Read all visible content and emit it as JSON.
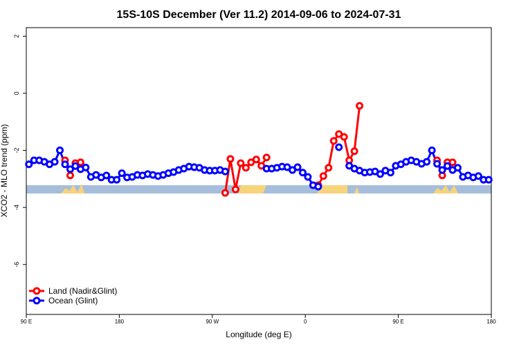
{
  "chart_data": {
    "type": "line",
    "title": "15S-10S December (Ver 11.2)   2014-09-06 to 2024-07-31",
    "xlabel": "Longitude (deg E)",
    "ylabel": "XCO2 - MLO trend (ppm)",
    "x": [
      92.5,
      97.5,
      102.5,
      107.5,
      112.5,
      117.5,
      122.5,
      127.5,
      132.5,
      137.5,
      142.5,
      147.5,
      152.5,
      157.5,
      162.5,
      167.5,
      172.5,
      177.5,
      182.5,
      187.5,
      192.5,
      197.5,
      202.5,
      207.5,
      212.5,
      217.5,
      222.5,
      227.5,
      232.5,
      237.5,
      242.5,
      247.5,
      252.5,
      257.5,
      262.5,
      267.5,
      272.5,
      277.5,
      282.5,
      287.5,
      292.5,
      297.5,
      302.5,
      307.5,
      312.5,
      317.5,
      322.5,
      327.5,
      332.5,
      337.5,
      342.5,
      347.5,
      352.5,
      357.5,
      362.5,
      367.5,
      372.5,
      377.5,
      382.5,
      387.5,
      392.5,
      397.5,
      402.5,
      407.5,
      412.5,
      417.5,
      422.5,
      427.5,
      432.5,
      437.5,
      442.5,
      447.5,
      452.5,
      457.5,
      462.5,
      467.5,
      472.5,
      477.5,
      482.5,
      487.5,
      492.5,
      497.5,
      502.5,
      507.5,
      512.5,
      517.5,
      522.5,
      527.5,
      532.5,
      537.5
    ],
    "series": [
      {
        "name": "Land (Nadir&Glint)",
        "color": "#ff0000",
        "values": [
          null,
          null,
          null,
          null,
          null,
          null,
          null,
          -2.35,
          -2.88,
          -2.45,
          -2.42,
          null,
          null,
          null,
          null,
          null,
          null,
          null,
          null,
          null,
          null,
          null,
          null,
          null,
          null,
          null,
          null,
          null,
          null,
          null,
          null,
          null,
          null,
          null,
          null,
          null,
          null,
          null,
          -3.49,
          -2.3,
          -3.37,
          -2.45,
          -2.61,
          -2.42,
          -2.32,
          -2.54,
          -2.25,
          null,
          null,
          null,
          null,
          null,
          null,
          null,
          null,
          null,
          -3.22,
          -2.9,
          -2.61,
          -1.67,
          -1.43,
          -1.53,
          -2.35,
          -2.03,
          -0.44,
          null,
          null,
          null,
          null,
          null,
          null,
          null,
          null,
          null,
          null,
          null,
          null,
          null,
          null,
          -2.35,
          -2.88,
          -2.42,
          -2.42,
          null,
          null,
          null,
          null,
          null,
          null,
          null
        ]
      },
      {
        "name": "Ocean (Glint)",
        "color": "#0000ff",
        "values": [
          -2.49,
          -2.35,
          -2.35,
          -2.4,
          -2.49,
          -2.4,
          -2.0,
          -2.49,
          -2.66,
          -2.55,
          -2.66,
          -2.6,
          -2.93,
          -2.86,
          -2.95,
          -2.88,
          -3.03,
          -3.03,
          -2.8,
          -2.95,
          -2.93,
          -2.86,
          -2.88,
          -2.83,
          -2.86,
          -2.9,
          -2.86,
          -2.8,
          -2.76,
          -2.69,
          -2.64,
          -2.57,
          -2.59,
          -2.61,
          -2.69,
          -2.71,
          -2.71,
          -2.69,
          -2.74,
          null,
          null,
          null,
          null,
          null,
          null,
          null,
          -2.64,
          -2.64,
          -2.61,
          -2.57,
          -2.59,
          -2.69,
          -2.59,
          -2.78,
          -2.93,
          -3.22,
          -3.27,
          null,
          null,
          null,
          -1.89,
          null,
          -2.54,
          -2.64,
          -2.71,
          -2.78,
          -2.76,
          -2.74,
          -2.83,
          -2.71,
          -2.78,
          -2.54,
          -2.49,
          -2.4,
          -2.35,
          -2.4,
          -2.47,
          -2.4,
          -2.0,
          -2.47,
          -2.69,
          -2.55,
          -2.69,
          -2.61,
          -2.93,
          -2.88,
          -2.95,
          -2.9,
          -3.03,
          -3.03
        ]
      }
    ],
    "xlim": [
      90,
      540
    ],
    "xticks": [
      {
        "value": 90,
        "label": "90 E"
      },
      180,
      {
        "value": 270,
        "label": "90 W"
      },
      {
        "value": 360,
        "label": "0"
      },
      {
        "value": 450,
        "label": "90 E"
      },
      {
        "value": 540,
        "label": "180"
      }
    ],
    "ylim": [
      -7.75,
      2.3
    ],
    "yticks": [
      2,
      0,
      -2,
      -4,
      -6
    ],
    "legend": "bottom-left"
  }
}
